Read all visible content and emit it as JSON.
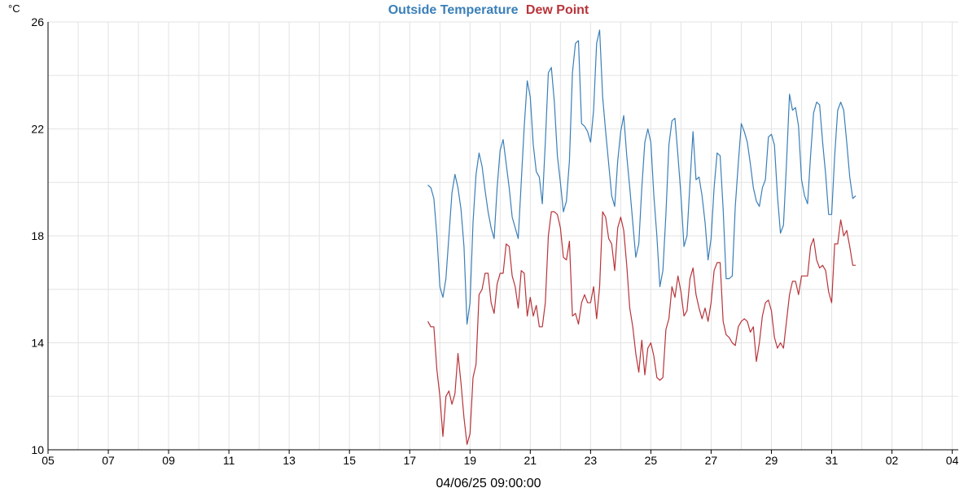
{
  "chart_data": {
    "type": "line",
    "title_parts": [
      {
        "text": "Outside Temperature",
        "color": "#3a7fb8"
      },
      {
        "text": "Dew Point",
        "color": "#b8343a"
      }
    ],
    "y_unit": "°C",
    "footer": "04/06/25 09:00:00",
    "ylim": [
      10,
      26
    ],
    "y_ticks": [
      10,
      14,
      18,
      22,
      26
    ],
    "y_minor_step": 2,
    "x_range_days": [
      0,
      30.2
    ],
    "x_tick_labels": [
      {
        "day": 0,
        "label": "05"
      },
      {
        "day": 2,
        "label": "07"
      },
      {
        "day": 4,
        "label": "09"
      },
      {
        "day": 6,
        "label": "11"
      },
      {
        "day": 8,
        "label": "13"
      },
      {
        "day": 10,
        "label": "15"
      },
      {
        "day": 12,
        "label": "17"
      },
      {
        "day": 14,
        "label": "19"
      },
      {
        "day": 16,
        "label": "21"
      },
      {
        "day": 18,
        "label": "23"
      },
      {
        "day": 20,
        "label": "25"
      },
      {
        "day": 22,
        "label": "27"
      },
      {
        "day": 24,
        "label": "29"
      },
      {
        "day": 26,
        "label": "31"
      },
      {
        "day": 28,
        "label": "02"
      },
      {
        "day": 30,
        "label": "04"
      }
    ],
    "grid": true,
    "series": [
      {
        "name": "Outside Temperature",
        "color": "#3a7fb8",
        "points": [
          [
            12.6,
            19.9
          ],
          [
            12.7,
            19.8
          ],
          [
            12.8,
            19.4
          ],
          [
            12.9,
            18.0
          ],
          [
            13.0,
            16.1
          ],
          [
            13.1,
            15.7
          ],
          [
            13.2,
            16.4
          ],
          [
            13.3,
            18.0
          ],
          [
            13.4,
            19.6
          ],
          [
            13.5,
            20.3
          ],
          [
            13.6,
            19.8
          ],
          [
            13.7,
            19.0
          ],
          [
            13.8,
            17.6
          ],
          [
            13.9,
            14.7
          ],
          [
            14.0,
            15.5
          ],
          [
            14.1,
            18.5
          ],
          [
            14.2,
            20.3
          ],
          [
            14.3,
            21.1
          ],
          [
            14.4,
            20.6
          ],
          [
            14.5,
            19.7
          ],
          [
            14.6,
            18.9
          ],
          [
            14.7,
            18.3
          ],
          [
            14.8,
            17.9
          ],
          [
            14.9,
            19.8
          ],
          [
            15.0,
            21.2
          ],
          [
            15.1,
            21.6
          ],
          [
            15.2,
            20.7
          ],
          [
            15.3,
            19.8
          ],
          [
            15.4,
            18.7
          ],
          [
            15.5,
            18.3
          ],
          [
            15.6,
            17.9
          ],
          [
            15.7,
            20.0
          ],
          [
            15.8,
            22.1
          ],
          [
            15.9,
            23.8
          ],
          [
            16.0,
            23.2
          ],
          [
            16.1,
            21.4
          ],
          [
            16.2,
            20.4
          ],
          [
            16.3,
            20.2
          ],
          [
            16.4,
            19.2
          ],
          [
            16.5,
            21.5
          ],
          [
            16.6,
            24.1
          ],
          [
            16.7,
            24.3
          ],
          [
            16.8,
            23.0
          ],
          [
            16.9,
            21.0
          ],
          [
            17.0,
            20.0
          ],
          [
            17.1,
            18.9
          ],
          [
            17.2,
            19.3
          ],
          [
            17.3,
            20.8
          ],
          [
            17.4,
            24.1
          ],
          [
            17.5,
            25.2
          ],
          [
            17.6,
            25.3
          ],
          [
            17.7,
            22.2
          ],
          [
            17.8,
            22.1
          ],
          [
            17.9,
            21.9
          ],
          [
            18.0,
            21.5
          ],
          [
            18.1,
            22.7
          ],
          [
            18.2,
            25.2
          ],
          [
            18.3,
            25.7
          ],
          [
            18.4,
            23.2
          ],
          [
            18.5,
            21.9
          ],
          [
            18.6,
            20.7
          ],
          [
            18.7,
            19.5
          ],
          [
            18.8,
            19.1
          ],
          [
            18.9,
            20.8
          ],
          [
            19.0,
            21.9
          ],
          [
            19.1,
            22.5
          ],
          [
            19.2,
            21.0
          ],
          [
            19.3,
            19.8
          ],
          [
            19.4,
            18.5
          ],
          [
            19.5,
            17.2
          ],
          [
            19.6,
            17.7
          ],
          [
            19.7,
            19.8
          ],
          [
            19.8,
            21.5
          ],
          [
            19.9,
            22.0
          ],
          [
            20.0,
            21.5
          ],
          [
            20.1,
            19.5
          ],
          [
            20.2,
            18.0
          ],
          [
            20.3,
            16.1
          ],
          [
            20.4,
            16.7
          ],
          [
            20.5,
            18.8
          ],
          [
            20.6,
            21.4
          ],
          [
            20.7,
            22.3
          ],
          [
            20.8,
            22.4
          ],
          [
            20.9,
            21.0
          ],
          [
            21.0,
            19.5
          ],
          [
            21.1,
            17.6
          ],
          [
            21.2,
            18.0
          ],
          [
            21.3,
            20.0
          ],
          [
            21.4,
            21.9
          ],
          [
            21.5,
            20.1
          ],
          [
            21.6,
            20.2
          ],
          [
            21.7,
            19.5
          ],
          [
            21.8,
            18.5
          ],
          [
            21.9,
            17.1
          ],
          [
            22.0,
            17.9
          ],
          [
            22.1,
            19.8
          ],
          [
            22.2,
            21.1
          ],
          [
            22.3,
            21.0
          ],
          [
            22.4,
            19.0
          ],
          [
            22.5,
            16.4
          ],
          [
            22.6,
            16.4
          ],
          [
            22.7,
            16.5
          ],
          [
            22.8,
            19.1
          ],
          [
            22.9,
            20.7
          ],
          [
            23.0,
            22.2
          ],
          [
            23.1,
            21.9
          ],
          [
            23.2,
            21.5
          ],
          [
            23.3,
            20.7
          ],
          [
            23.4,
            19.8
          ],
          [
            23.5,
            19.3
          ],
          [
            23.6,
            19.1
          ],
          [
            23.7,
            19.8
          ],
          [
            23.8,
            20.1
          ],
          [
            23.9,
            21.7
          ],
          [
            24.0,
            21.8
          ],
          [
            24.1,
            21.4
          ],
          [
            24.2,
            19.5
          ],
          [
            24.3,
            18.1
          ],
          [
            24.4,
            18.4
          ],
          [
            24.5,
            20.7
          ],
          [
            24.6,
            23.3
          ],
          [
            24.7,
            22.7
          ],
          [
            24.8,
            22.8
          ],
          [
            24.9,
            22.1
          ],
          [
            25.0,
            20.1
          ],
          [
            25.1,
            19.5
          ],
          [
            25.2,
            19.2
          ],
          [
            25.3,
            21.0
          ],
          [
            25.4,
            22.6
          ],
          [
            25.5,
            23.0
          ],
          [
            25.6,
            22.9
          ],
          [
            25.7,
            21.5
          ],
          [
            25.8,
            20.3
          ],
          [
            25.9,
            18.8
          ],
          [
            26.0,
            18.8
          ],
          [
            26.1,
            21.0
          ],
          [
            26.2,
            22.7
          ],
          [
            26.3,
            23.0
          ],
          [
            26.4,
            22.7
          ],
          [
            26.5,
            21.5
          ],
          [
            26.6,
            20.2
          ],
          [
            26.7,
            19.4
          ],
          [
            26.8,
            19.5
          ]
        ]
      },
      {
        "name": "Dew Point",
        "color": "#b8343a",
        "points": [
          [
            12.6,
            14.8
          ],
          [
            12.7,
            14.6
          ],
          [
            12.8,
            14.6
          ],
          [
            12.9,
            13.0
          ],
          [
            13.0,
            12.0
          ],
          [
            13.1,
            10.5
          ],
          [
            13.2,
            12.0
          ],
          [
            13.3,
            12.2
          ],
          [
            13.4,
            11.7
          ],
          [
            13.5,
            12.1
          ],
          [
            13.6,
            13.6
          ],
          [
            13.7,
            12.5
          ],
          [
            13.8,
            11.2
          ],
          [
            13.9,
            10.2
          ],
          [
            14.0,
            10.6
          ],
          [
            14.1,
            12.7
          ],
          [
            14.2,
            13.2
          ],
          [
            14.3,
            15.8
          ],
          [
            14.4,
            16.0
          ],
          [
            14.5,
            16.6
          ],
          [
            14.6,
            16.6
          ],
          [
            14.7,
            15.5
          ],
          [
            14.8,
            15.1
          ],
          [
            14.9,
            16.2
          ],
          [
            15.0,
            16.6
          ],
          [
            15.1,
            16.6
          ],
          [
            15.2,
            17.7
          ],
          [
            15.3,
            17.6
          ],
          [
            15.4,
            16.5
          ],
          [
            15.5,
            16.1
          ],
          [
            15.6,
            15.3
          ],
          [
            15.7,
            16.7
          ],
          [
            15.8,
            16.6
          ],
          [
            15.9,
            15.0
          ],
          [
            16.0,
            15.7
          ],
          [
            16.1,
            15.0
          ],
          [
            16.2,
            15.4
          ],
          [
            16.3,
            14.6
          ],
          [
            16.4,
            14.6
          ],
          [
            16.5,
            15.5
          ],
          [
            16.6,
            18.0
          ],
          [
            16.7,
            18.9
          ],
          [
            16.8,
            18.9
          ],
          [
            16.9,
            18.8
          ],
          [
            17.0,
            18.3
          ],
          [
            17.1,
            17.2
          ],
          [
            17.2,
            17.1
          ],
          [
            17.3,
            17.8
          ],
          [
            17.4,
            15.0
          ],
          [
            17.5,
            15.1
          ],
          [
            17.6,
            14.7
          ],
          [
            17.7,
            15.5
          ],
          [
            17.8,
            15.8
          ],
          [
            17.9,
            15.5
          ],
          [
            18.0,
            15.5
          ],
          [
            18.1,
            16.1
          ],
          [
            18.2,
            14.9
          ],
          [
            18.3,
            16.1
          ],
          [
            18.4,
            18.9
          ],
          [
            18.5,
            18.7
          ],
          [
            18.6,
            17.9
          ],
          [
            18.7,
            17.7
          ],
          [
            18.8,
            16.7
          ],
          [
            18.9,
            18.3
          ],
          [
            19.0,
            18.7
          ],
          [
            19.1,
            18.2
          ],
          [
            19.2,
            16.9
          ],
          [
            19.3,
            15.3
          ],
          [
            19.4,
            14.6
          ],
          [
            19.5,
            13.6
          ],
          [
            19.6,
            12.9
          ],
          [
            19.7,
            14.1
          ],
          [
            19.8,
            12.8
          ],
          [
            19.9,
            13.8
          ],
          [
            20.0,
            14.0
          ],
          [
            20.1,
            13.5
          ],
          [
            20.2,
            12.7
          ],
          [
            20.3,
            12.6
          ],
          [
            20.4,
            12.7
          ],
          [
            20.5,
            14.5
          ],
          [
            20.6,
            14.9
          ],
          [
            20.7,
            16.1
          ],
          [
            20.8,
            15.7
          ],
          [
            20.9,
            16.5
          ],
          [
            21.0,
            15.9
          ],
          [
            21.1,
            15.0
          ],
          [
            21.2,
            15.2
          ],
          [
            21.3,
            16.4
          ],
          [
            21.4,
            16.8
          ],
          [
            21.5,
            15.8
          ],
          [
            21.6,
            15.3
          ],
          [
            21.7,
            14.9
          ],
          [
            21.8,
            15.3
          ],
          [
            21.9,
            14.8
          ],
          [
            22.0,
            15.5
          ],
          [
            22.1,
            16.7
          ],
          [
            22.2,
            17.0
          ],
          [
            22.3,
            17.0
          ],
          [
            22.4,
            14.8
          ],
          [
            22.5,
            14.3
          ],
          [
            22.6,
            14.2
          ],
          [
            22.7,
            14.0
          ],
          [
            22.8,
            13.9
          ],
          [
            22.9,
            14.6
          ],
          [
            23.0,
            14.8
          ],
          [
            23.1,
            14.9
          ],
          [
            23.2,
            14.8
          ],
          [
            23.3,
            14.4
          ],
          [
            23.4,
            14.6
          ],
          [
            23.5,
            13.3
          ],
          [
            23.6,
            14.0
          ],
          [
            23.7,
            15.0
          ],
          [
            23.8,
            15.5
          ],
          [
            23.9,
            15.6
          ],
          [
            24.0,
            15.2
          ],
          [
            24.1,
            14.2
          ],
          [
            24.2,
            13.8
          ],
          [
            24.3,
            14.0
          ],
          [
            24.4,
            13.8
          ],
          [
            24.5,
            14.8
          ],
          [
            24.6,
            15.8
          ],
          [
            24.7,
            16.3
          ],
          [
            24.8,
            16.3
          ],
          [
            24.9,
            15.8
          ],
          [
            25.0,
            16.5
          ],
          [
            25.1,
            16.5
          ],
          [
            25.2,
            16.5
          ],
          [
            25.3,
            17.6
          ],
          [
            25.4,
            17.9
          ],
          [
            25.5,
            17.1
          ],
          [
            25.6,
            16.8
          ],
          [
            25.7,
            16.9
          ],
          [
            25.8,
            16.7
          ],
          [
            25.9,
            15.9
          ],
          [
            26.0,
            15.5
          ],
          [
            26.1,
            17.7
          ],
          [
            26.2,
            17.7
          ],
          [
            26.3,
            18.6
          ],
          [
            26.4,
            18.0
          ],
          [
            26.5,
            18.2
          ],
          [
            26.6,
            17.6
          ],
          [
            26.7,
            16.9
          ],
          [
            26.8,
            16.9
          ]
        ]
      }
    ]
  }
}
